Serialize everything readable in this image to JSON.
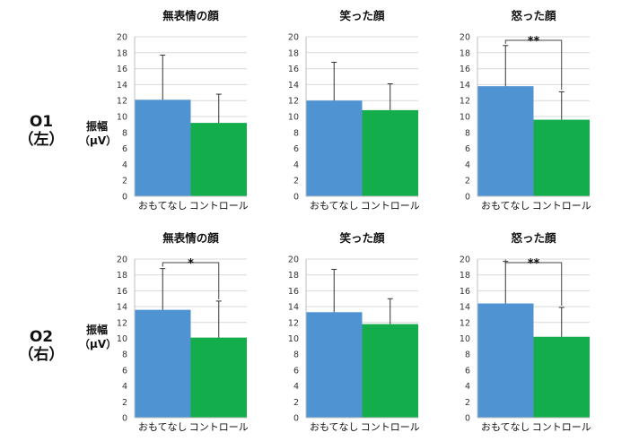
{
  "rows": [
    {
      "label_line1": "O1",
      "label_line2": "（左）",
      "ylabel_line1": "振幅",
      "ylabel_line2": "（μV）"
    },
    {
      "label_line1": "O2",
      "label_line2": "（右）",
      "ylabel_line1": "振幅",
      "ylabel_line2": "（μV）"
    }
  ],
  "colors": {
    "series1": "#4f93d2",
    "series2": "#13ad4c",
    "grid": "#d9d9d9",
    "axis": "#bfbfbf",
    "error_bar": "#333333"
  },
  "chart_data": [
    {
      "type": "bar",
      "title": "無表情の顔",
      "categories": [
        "おもてなし",
        "コントロール"
      ],
      "values": [
        12.1,
        9.2
      ],
      "errors": [
        5.6,
        3.6
      ],
      "ylim": [
        0,
        20
      ],
      "yticks": [
        0,
        2,
        4,
        6,
        8,
        10,
        12,
        14,
        16,
        18,
        20
      ],
      "significance": ""
    },
    {
      "type": "bar",
      "title": "笑った顔",
      "categories": [
        "おもてなし",
        "コントロール"
      ],
      "values": [
        12.0,
        10.8
      ],
      "errors": [
        4.8,
        3.3
      ],
      "ylim": [
        0,
        20
      ],
      "yticks": [
        0,
        2,
        4,
        6,
        8,
        10,
        12,
        14,
        16,
        18,
        20
      ],
      "significance": ""
    },
    {
      "type": "bar",
      "title": "怒った顔",
      "categories": [
        "おもてなし",
        "コントロール"
      ],
      "values": [
        13.8,
        9.6
      ],
      "errors": [
        5.1,
        3.5
      ],
      "ylim": [
        0,
        20
      ],
      "yticks": [
        0,
        2,
        4,
        6,
        8,
        10,
        12,
        14,
        16,
        18,
        20
      ],
      "significance": "**"
    },
    {
      "type": "bar",
      "title": "無表情の顔",
      "categories": [
        "おもてなし",
        "コントロール"
      ],
      "values": [
        13.6,
        10.1
      ],
      "errors": [
        5.2,
        4.6
      ],
      "ylim": [
        0,
        20
      ],
      "yticks": [
        0,
        2,
        4,
        6,
        8,
        10,
        12,
        14,
        16,
        18,
        20
      ],
      "significance": "*"
    },
    {
      "type": "bar",
      "title": "笑った顔",
      "categories": [
        "おもてなし",
        "コントロール"
      ],
      "values": [
        13.3,
        11.8
      ],
      "errors": [
        5.4,
        3.2
      ],
      "ylim": [
        0,
        20
      ],
      "yticks": [
        0,
        2,
        4,
        6,
        8,
        10,
        12,
        14,
        16,
        18,
        20
      ],
      "significance": ""
    },
    {
      "type": "bar",
      "title": "怒った顔",
      "categories": [
        "おもてなし",
        "コントロール"
      ],
      "values": [
        14.4,
        10.2
      ],
      "errors": [
        5.3,
        3.7
      ],
      "ylim": [
        0,
        20
      ],
      "yticks": [
        0,
        2,
        4,
        6,
        8,
        10,
        12,
        14,
        16,
        18,
        20
      ],
      "significance": "**"
    }
  ]
}
